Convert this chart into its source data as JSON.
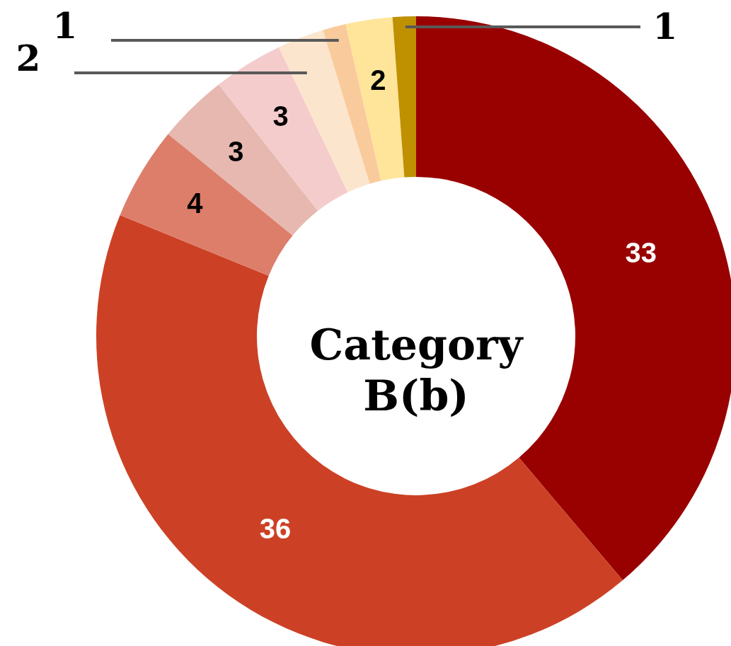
{
  "chart_data": {
    "type": "donut",
    "title": "Category B(b)",
    "categories": [
      null,
      null,
      null,
      null,
      null,
      null,
      null,
      null,
      null
    ],
    "values": [
      33,
      36,
      4,
      3,
      3,
      2,
      1,
      2,
      1
    ],
    "colors": [
      "#990000",
      "#cc4125",
      "#dd7e6b",
      "#e6b8af",
      "#f4cccc",
      "#fce5cd",
      "#f9cb9c",
      "#ffe599",
      "#bf9000"
    ],
    "data_labels": true
  }
}
